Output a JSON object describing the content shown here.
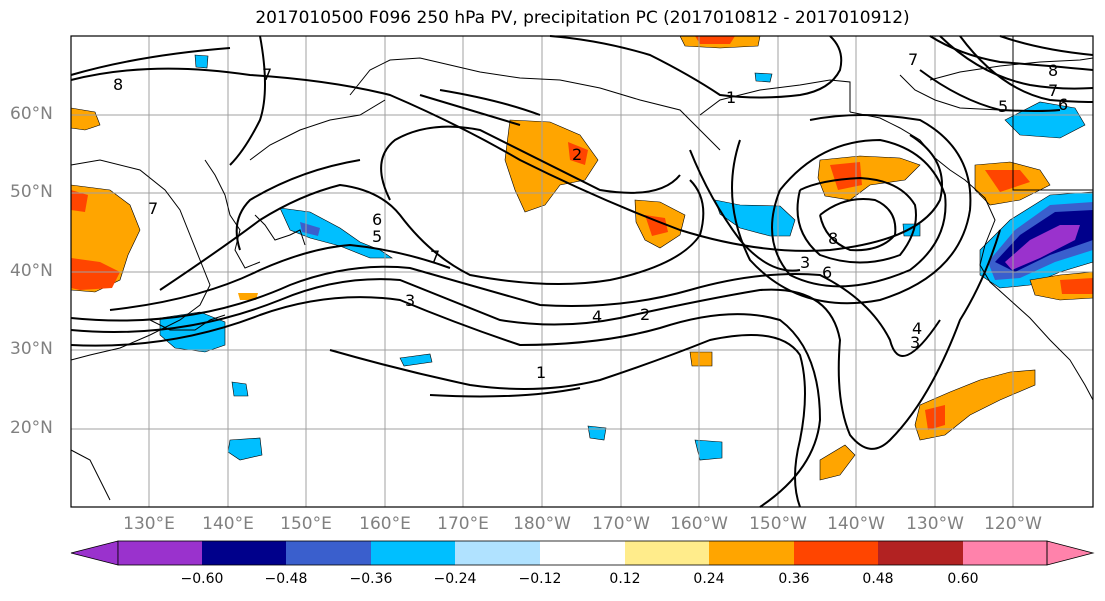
{
  "title": "2017010500 F096 250 hPa PV, precipitation PC (2017010812 - 2017010912)",
  "lat_labels": [
    "60°N",
    "50°N",
    "40°N",
    "30°N",
    "20°N"
  ],
  "lon_labels": [
    "130°E",
    "140°E",
    "150°E",
    "160°E",
    "170°E",
    "180°W",
    "170°W",
    "160°W",
    "150°W",
    "140°W",
    "130°W",
    "120°W"
  ],
  "contour_labels": [
    "8",
    "7",
    "1",
    "8",
    "7",
    "5",
    "6",
    "2",
    "6",
    "5",
    "7",
    "3",
    "8",
    "3",
    "6",
    "4",
    "2",
    "1",
    "3",
    "4",
    "7",
    "7"
  ],
  "colorbar": {
    "ticks": [
      "−0.60",
      "−0.48",
      "−0.36",
      "−0.24",
      "−0.12",
      "0.12",
      "0.24",
      "0.36",
      "0.48",
      "0.60"
    ],
    "colors": [
      "#9a32cd",
      "#00008b",
      "#3a5fcd",
      "#00bfff",
      "#b0e2ff",
      "#ffffff",
      "#ffec8b",
      "#ffa500",
      "#ff4500",
      "#b22222",
      "#ff82ab"
    ]
  }
}
